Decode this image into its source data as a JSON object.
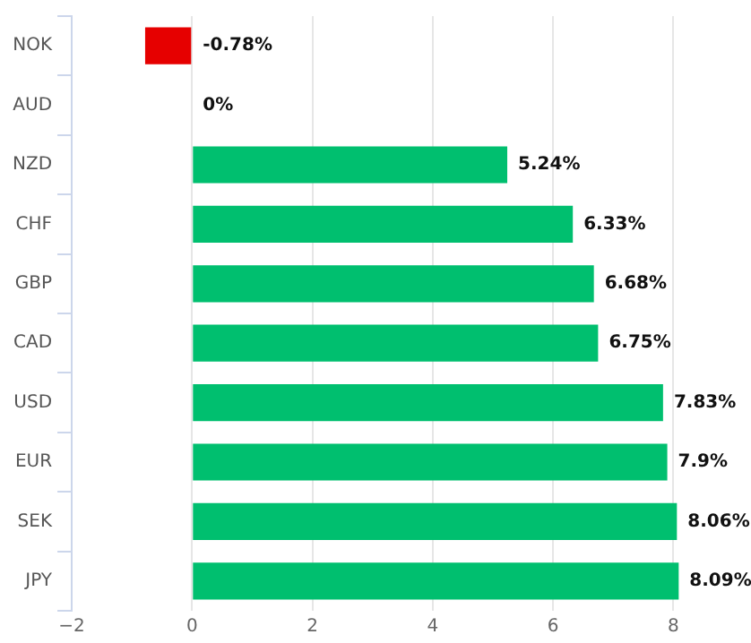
{
  "chart_data": {
    "type": "bar",
    "orientation": "horizontal",
    "categories": [
      "NOK",
      "AUD",
      "NZD",
      "CHF",
      "GBP",
      "CAD",
      "USD",
      "EUR",
      "SEK",
      "JPY"
    ],
    "values": [
      -0.78,
      0,
      5.24,
      6.33,
      6.68,
      6.75,
      7.83,
      7.9,
      8.06,
      8.09
    ],
    "colors": [
      "#e60000",
      "#00bf6f",
      "#00bf6f",
      "#00bf6f",
      "#00bf6f",
      "#00bf6f",
      "#00bf6f",
      "#00bf6f",
      "#00bf6f",
      "#00bf6f"
    ],
    "value_labels": [
      "-0.78%",
      "0%",
      "5.24%",
      "6.33%",
      "6.68%",
      "6.75%",
      "7.83%",
      "7.9%",
      "8.06%",
      "8.09%"
    ],
    "xlim": [
      -2,
      8.1
    ],
    "xticks": [
      -2,
      0,
      2,
      4,
      6,
      8
    ],
    "grid": "x",
    "legend": false
  }
}
